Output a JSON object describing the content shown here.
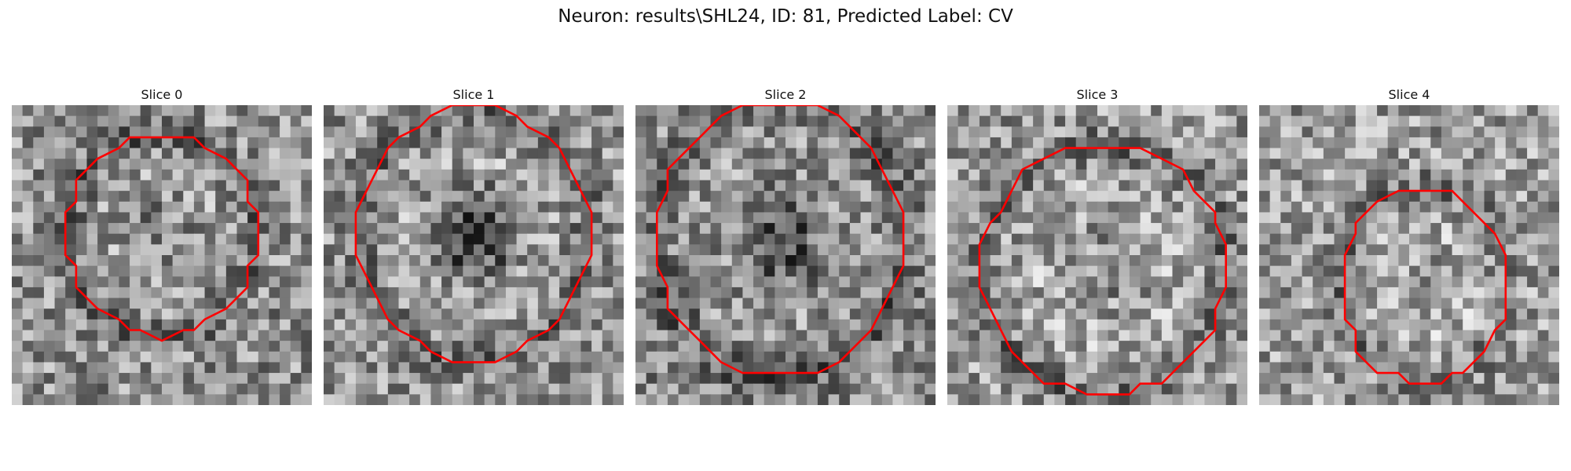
{
  "figure": {
    "title": "Neuron: results\\SHL24, ID: 81, Predicted Label: CV"
  },
  "panels": [
    {
      "title": "Slice 0"
    },
    {
      "title": "Slice 1"
    },
    {
      "title": "Slice 2"
    },
    {
      "title": "Slice 3"
    },
    {
      "title": "Slice 4"
    }
  ],
  "colors": {
    "contour": "#ff0000",
    "background": "#ffffff"
  }
}
